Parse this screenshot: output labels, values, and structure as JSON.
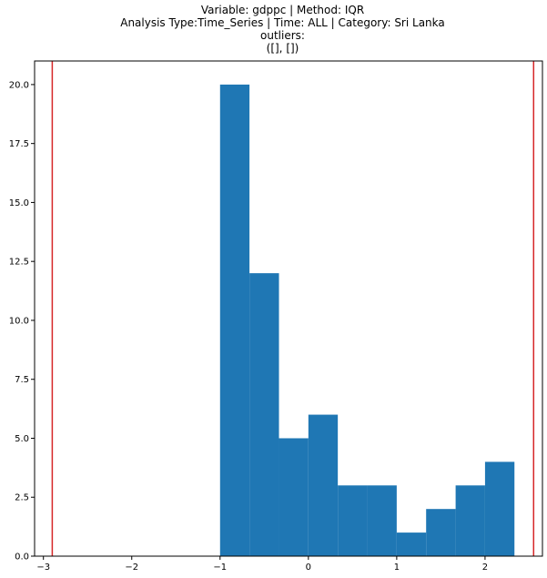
{
  "chart_data": {
    "type": "bar",
    "title_lines": [
      "Variable: gdppc | Method: IQR",
      "Analysis Type:Time_Series | Time: ALL | Category: Sri Lanka",
      "outliers:",
      "([], [])"
    ],
    "xlabel": "",
    "ylabel": "",
    "xlim": [
      -3.1,
      2.65
    ],
    "ylim": [
      0,
      21
    ],
    "x_ticks": [
      -3,
      -2,
      -1,
      0,
      1,
      2
    ],
    "y_ticks": [
      0.0,
      2.5,
      5.0,
      7.5,
      10.0,
      12.5,
      15.0,
      17.5,
      20.0
    ],
    "bins": [
      {
        "x0": -1.0,
        "x1": -0.667,
        "count": 20
      },
      {
        "x0": -0.667,
        "x1": -0.333,
        "count": 12
      },
      {
        "x0": -0.333,
        "x1": 0.0,
        "count": 5
      },
      {
        "x0": 0.0,
        "x1": 0.333,
        "count": 6
      },
      {
        "x0": 0.333,
        "x1": 0.667,
        "count": 3
      },
      {
        "x0": 0.667,
        "x1": 1.0,
        "count": 3
      },
      {
        "x0": 1.0,
        "x1": 1.333,
        "count": 1
      },
      {
        "x0": 1.333,
        "x1": 1.667,
        "count": 2
      },
      {
        "x0": 1.667,
        "x1": 2.0,
        "count": 3
      },
      {
        "x0": 2.0,
        "x1": 2.333,
        "count": 4
      }
    ],
    "threshold_lines": [
      -2.9,
      2.55
    ],
    "colors": {
      "bar": "#1f77b4",
      "threshold": "#d62728"
    },
    "grid": false
  }
}
